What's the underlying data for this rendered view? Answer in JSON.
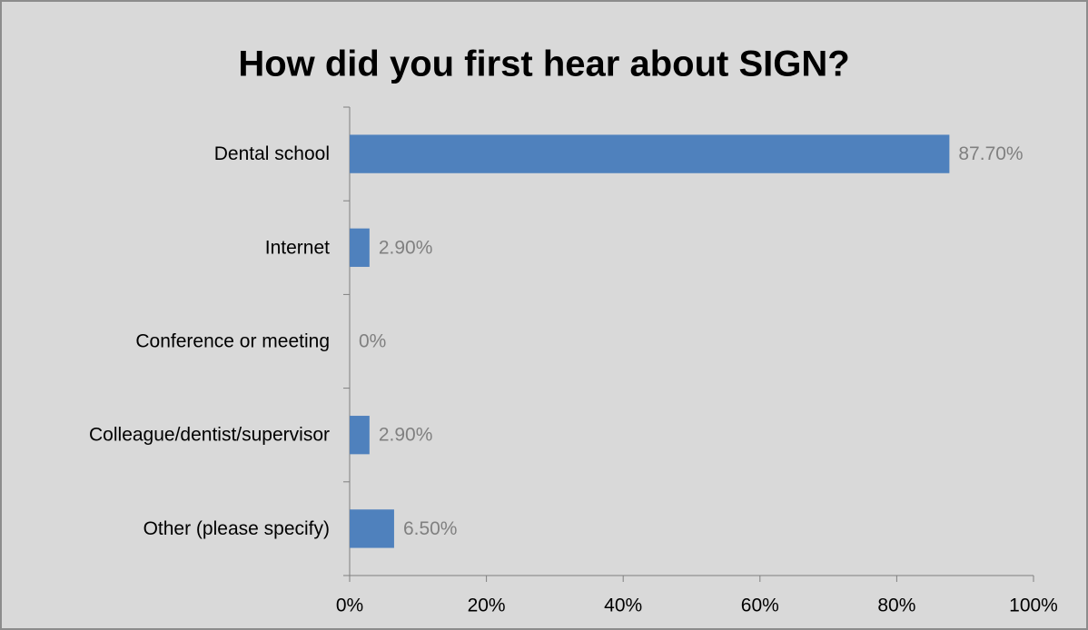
{
  "chart_data": {
    "type": "bar",
    "orientation": "horizontal",
    "title": "How did you first hear about SIGN?",
    "categories": [
      "Dental school",
      "Internet",
      "Conference or meeting",
      "Colleague/dentist/supervisor",
      "Other (please specify)"
    ],
    "values": [
      87.7,
      2.9,
      0,
      2.9,
      6.5
    ],
    "value_labels": [
      "87.70%",
      "2.90%",
      "0%",
      "2.90%",
      "6.50%"
    ],
    "color": "#4f81bd",
    "xlim": [
      0,
      100
    ],
    "xticks": [
      {
        "value": 0,
        "label": "0%"
      },
      {
        "value": 20,
        "label": "20%"
      },
      {
        "value": 40,
        "label": "40%"
      },
      {
        "value": 60,
        "label": "60%"
      },
      {
        "value": 80,
        "label": "80%"
      },
      {
        "value": 100,
        "label": "100%"
      }
    ],
    "grid": false
  }
}
